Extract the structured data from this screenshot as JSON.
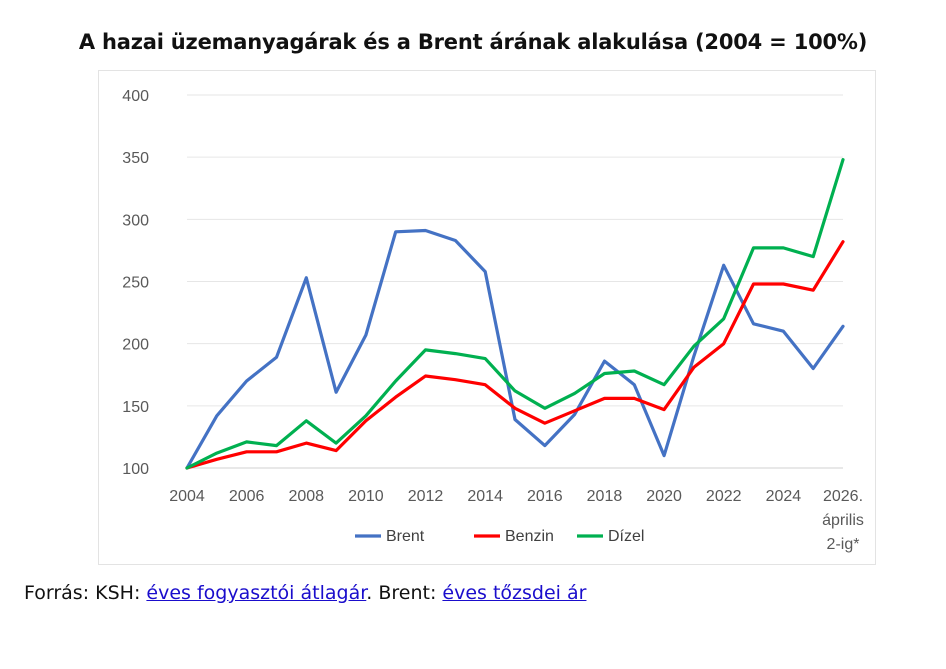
{
  "chart_data": {
    "type": "line",
    "title": "A hazai üzemanyagárak és a Brent árának alakulása (2004 = 100%)",
    "xlabel": "",
    "ylabel": "",
    "x": [
      2004,
      2005,
      2006,
      2007,
      2008,
      2009,
      2010,
      2011,
      2012,
      2013,
      2014,
      2015,
      2016,
      2017,
      2018,
      2019,
      2020,
      2021,
      2022,
      2023,
      2024,
      2025,
      2026
    ],
    "x_tick_labels": [
      "2004",
      "2006",
      "2008",
      "2010",
      "2012",
      "2014",
      "2016",
      "2018",
      "2020",
      "2022",
      "2024"
    ],
    "x_last_label_lines": [
      "2026.",
      "április",
      "2-ig*"
    ],
    "ylim": [
      100,
      400
    ],
    "y_ticks": [
      100,
      150,
      200,
      250,
      300,
      350,
      400
    ],
    "grid": "horizontal",
    "legend_position": "bottom",
    "series": [
      {
        "name": "Brent",
        "color": "#4472c4",
        "values": [
          100,
          142,
          170,
          189,
          253,
          161,
          207,
          290,
          291,
          283,
          258,
          139,
          118,
          143,
          186,
          167,
          110,
          190,
          263,
          216,
          210,
          180,
          214
        ]
      },
      {
        "name": "Benzin",
        "color": "#ff0000",
        "values": [
          100,
          107,
          113,
          113,
          120,
          114,
          138,
          157,
          174,
          171,
          167,
          148,
          136,
          146,
          156,
          156,
          147,
          181,
          200,
          248,
          248,
          243,
          282
        ]
      },
      {
        "name": "Dízel",
        "color": "#00b050",
        "values": [
          100,
          112,
          121,
          118,
          138,
          120,
          142,
          170,
          195,
          192,
          188,
          162,
          148,
          160,
          176,
          178,
          167,
          198,
          220,
          277,
          277,
          270,
          348
        ]
      }
    ]
  },
  "footer": {
    "prefix": "Forrás: KSH: ",
    "link1": "éves fogyasztói átlagár",
    "middle": ". Brent: ",
    "link2": "éves tőzsdei ár"
  }
}
